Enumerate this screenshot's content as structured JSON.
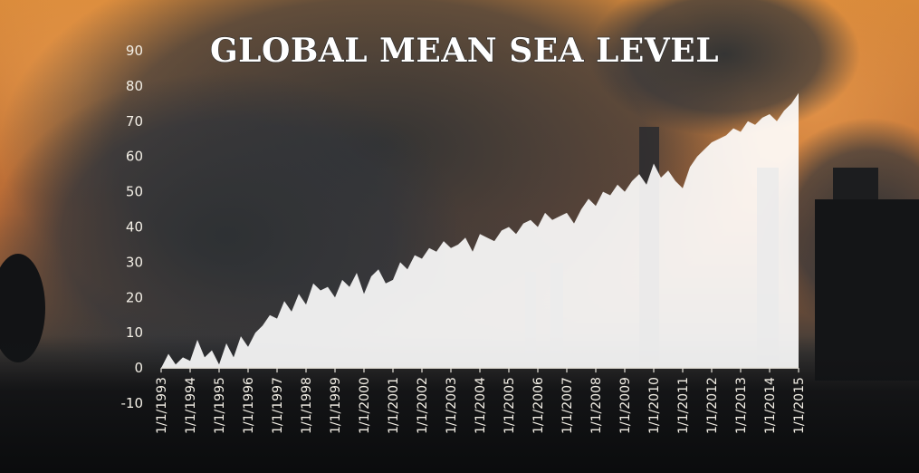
{
  "chart_data": {
    "type": "area",
    "title": "GLOBAL MEAN SEA LEVEL",
    "xlabel": "",
    "ylabel": "",
    "ylim": [
      -10,
      90
    ],
    "yticks": [
      -10,
      0,
      10,
      20,
      30,
      40,
      50,
      60,
      70,
      80,
      90
    ],
    "xlim": [
      "1/1/1993",
      "1/1/2015"
    ],
    "xticks": [
      "1/1/1993",
      "1/1/1994",
      "1/1/1995",
      "1/1/1996",
      "1/1/1997",
      "1/1/1998",
      "1/1/1999",
      "1/1/2000",
      "1/1/2001",
      "1/1/2002",
      "1/1/2003",
      "1/1/2004",
      "1/1/2005",
      "1/1/2006",
      "1/1/2007",
      "1/1/2008",
      "1/1/2009",
      "1/1/2010",
      "1/1/2011",
      "1/1/2012",
      "1/1/2013",
      "1/1/2014",
      "1/1/2015"
    ],
    "grid": false,
    "series": [
      {
        "color": "#ffffff",
        "x": [
          1993.0,
          1993.25,
          1993.5,
          1993.75,
          1994.0,
          1994.25,
          1994.5,
          1994.75,
          1995.0,
          1995.25,
          1995.5,
          1995.75,
          1996.0,
          1996.25,
          1996.5,
          1996.75,
          1997.0,
          1997.25,
          1997.5,
          1997.75,
          1998.0,
          1998.25,
          1998.5,
          1998.75,
          1999.0,
          1999.25,
          1999.5,
          1999.75,
          2000.0,
          2000.25,
          2000.5,
          2000.75,
          2001.0,
          2001.25,
          2001.5,
          2001.75,
          2002.0,
          2002.25,
          2002.5,
          2002.75,
          2003.0,
          2003.25,
          2003.5,
          2003.75,
          2004.0,
          2004.25,
          2004.5,
          2004.75,
          2005.0,
          2005.25,
          2005.5,
          2005.75,
          2006.0,
          2006.25,
          2006.5,
          2006.75,
          2007.0,
          2007.25,
          2007.5,
          2007.75,
          2008.0,
          2008.25,
          2008.5,
          2008.75,
          2009.0,
          2009.25,
          2009.5,
          2009.75,
          2010.0,
          2010.25,
          2010.5,
          2010.75,
          2011.0,
          2011.25,
          2011.5,
          2011.75,
          2012.0,
          2012.25,
          2012.5,
          2012.75,
          2013.0,
          2013.25,
          2013.5,
          2013.75,
          2014.0,
          2014.25,
          2014.5,
          2014.75,
          2015.0
        ],
        "y": [
          0,
          4,
          1,
          3,
          2,
          8,
          3,
          5,
          1,
          7,
          3,
          9,
          6,
          10,
          12,
          15,
          14,
          19,
          16,
          21,
          18,
          24,
          22,
          23,
          20,
          25,
          23,
          27,
          21,
          26,
          28,
          24,
          25,
          30,
          28,
          32,
          31,
          34,
          33,
          36,
          34,
          35,
          37,
          33,
          38,
          37,
          36,
          39,
          40,
          38,
          41,
          42,
          40,
          44,
          42,
          43,
          44,
          41,
          45,
          48,
          46,
          50,
          49,
          52,
          50,
          53,
          55,
          52,
          58,
          54,
          56,
          53,
          51,
          57,
          60,
          62,
          64,
          65,
          66,
          68,
          67,
          70,
          69,
          71,
          72,
          70,
          73,
          75,
          78
        ]
      }
    ]
  }
}
